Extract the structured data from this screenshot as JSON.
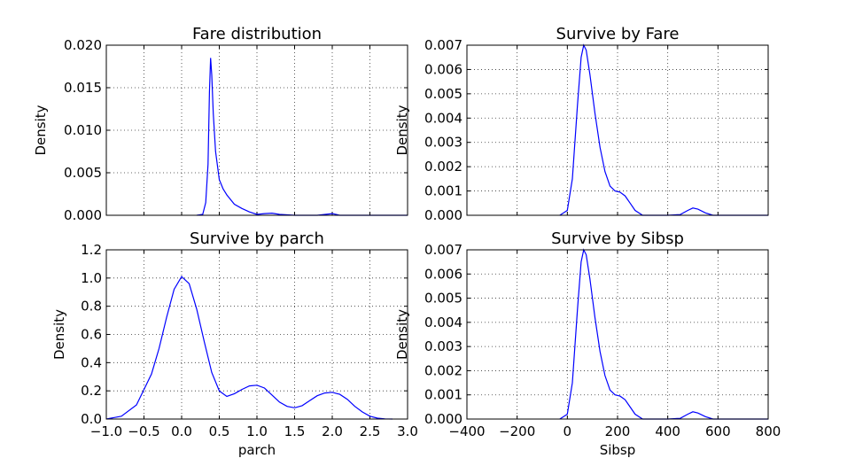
{
  "chart_data": [
    {
      "type": "line",
      "title": "Fare distribution",
      "xlabel": "",
      "ylabel": "Density",
      "xlim": [
        -1.0,
        3.0
      ],
      "ylim": [
        0,
        0.02
      ],
      "yticks": [
        "0.000",
        "0.005",
        "0.010",
        "0.015",
        "0.020"
      ],
      "xticks": [],
      "grid": true,
      "series": [
        {
          "color": "#0000ff",
          "x": [
            0.2,
            0.28,
            0.32,
            0.35,
            0.37,
            0.385,
            0.4,
            0.42,
            0.45,
            0.5,
            0.55,
            0.6,
            0.7,
            0.8,
            0.9,
            1.0,
            1.1,
            1.2,
            1.3,
            1.5,
            1.8,
            2.0,
            2.1,
            2.2,
            2.5,
            3.0
          ],
          "y": [
            0.0,
            0.0001,
            0.0015,
            0.006,
            0.0145,
            0.0185,
            0.0165,
            0.012,
            0.0075,
            0.0042,
            0.0031,
            0.0024,
            0.0013,
            0.0008,
            0.0004,
            0.0001,
            0.0002,
            0.00025,
            0.0001,
            0.0,
            0.0,
            0.0002,
            0.0,
            0.0,
            0.0,
            0.0
          ]
        }
      ]
    },
    {
      "type": "line",
      "title": "Survive by Fare",
      "xlabel": "",
      "ylabel": "Density",
      "xlim": [
        -400,
        800
      ],
      "ylim": [
        0,
        0.007
      ],
      "yticks": [
        "0.000",
        "0.001",
        "0.002",
        "0.003",
        "0.004",
        "0.005",
        "0.006",
        "0.007"
      ],
      "xticks": [],
      "grid": true,
      "series": [
        {
          "color": "#0000ff",
          "x": [
            -30,
            0,
            20,
            40,
            55,
            65,
            75,
            90,
            110,
            130,
            150,
            170,
            190,
            210,
            230,
            250,
            270,
            300,
            330,
            400,
            450,
            480,
            500,
            520,
            550,
            580,
            600,
            800
          ],
          "y": [
            0.0,
            0.0002,
            0.0015,
            0.0045,
            0.0065,
            0.007,
            0.0068,
            0.0058,
            0.0042,
            0.0028,
            0.0018,
            0.0012,
            0.001,
            0.00095,
            0.0008,
            0.0005,
            0.0002,
            0.0,
            0.0,
            0.0,
            3e-05,
            0.0002,
            0.0003,
            0.00025,
            0.0001,
            0.0,
            0.0,
            0.0
          ]
        }
      ]
    },
    {
      "type": "line",
      "title": "Survive by parch",
      "xlabel": "parch",
      "ylabel": "Density",
      "xlim": [
        -1.0,
        3.0
      ],
      "ylim": [
        0,
        1.2
      ],
      "yticks": [
        "0.0",
        "0.2",
        "0.4",
        "0.6",
        "0.8",
        "1.0",
        "1.2"
      ],
      "xticks": [
        "−1.0",
        "−0.5",
        "0.0",
        "0.5",
        "1.0",
        "1.5",
        "2.0",
        "2.5",
        "3.0"
      ],
      "grid": true,
      "series": [
        {
          "color": "#0000ff",
          "x": [
            -1.0,
            -0.8,
            -0.6,
            -0.4,
            -0.3,
            -0.2,
            -0.1,
            0.0,
            0.1,
            0.2,
            0.3,
            0.4,
            0.5,
            0.6,
            0.7,
            0.8,
            0.9,
            1.0,
            1.1,
            1.2,
            1.3,
            1.4,
            1.5,
            1.6,
            1.7,
            1.8,
            1.9,
            2.0,
            2.1,
            2.2,
            2.3,
            2.4,
            2.5,
            2.6,
            2.7,
            2.8
          ],
          "y": [
            0.0,
            0.02,
            0.1,
            0.32,
            0.5,
            0.72,
            0.92,
            1.01,
            0.96,
            0.78,
            0.55,
            0.33,
            0.2,
            0.16,
            0.18,
            0.21,
            0.235,
            0.24,
            0.22,
            0.17,
            0.12,
            0.09,
            0.08,
            0.095,
            0.13,
            0.165,
            0.185,
            0.19,
            0.175,
            0.14,
            0.09,
            0.05,
            0.02,
            0.006,
            0.001,
            0.0
          ]
        }
      ]
    },
    {
      "type": "line",
      "title": "Survive by Sibsp",
      "xlabel": "Sibsp",
      "ylabel": "Density",
      "xlim": [
        -400,
        800
      ],
      "ylim": [
        0,
        0.007
      ],
      "yticks": [
        "0.000",
        "0.001",
        "0.002",
        "0.003",
        "0.004",
        "0.005",
        "0.006",
        "0.007"
      ],
      "xticks": [
        "−400",
        "−200",
        "0",
        "200",
        "400",
        "600",
        "800"
      ],
      "grid": true,
      "series": [
        {
          "color": "#0000ff",
          "x": [
            -30,
            0,
            20,
            40,
            55,
            65,
            75,
            90,
            110,
            130,
            150,
            170,
            190,
            210,
            230,
            250,
            270,
            300,
            330,
            400,
            450,
            480,
            500,
            520,
            550,
            580,
            600,
            800
          ],
          "y": [
            0.0,
            0.0002,
            0.0015,
            0.0045,
            0.0065,
            0.007,
            0.0068,
            0.0058,
            0.0042,
            0.0028,
            0.0018,
            0.0012,
            0.001,
            0.00095,
            0.0008,
            0.0005,
            0.0002,
            0.0,
            0.0,
            0.0,
            3e-05,
            0.0002,
            0.0003,
            0.00025,
            0.0001,
            0.0,
            0.0,
            0.0
          ]
        }
      ]
    }
  ]
}
